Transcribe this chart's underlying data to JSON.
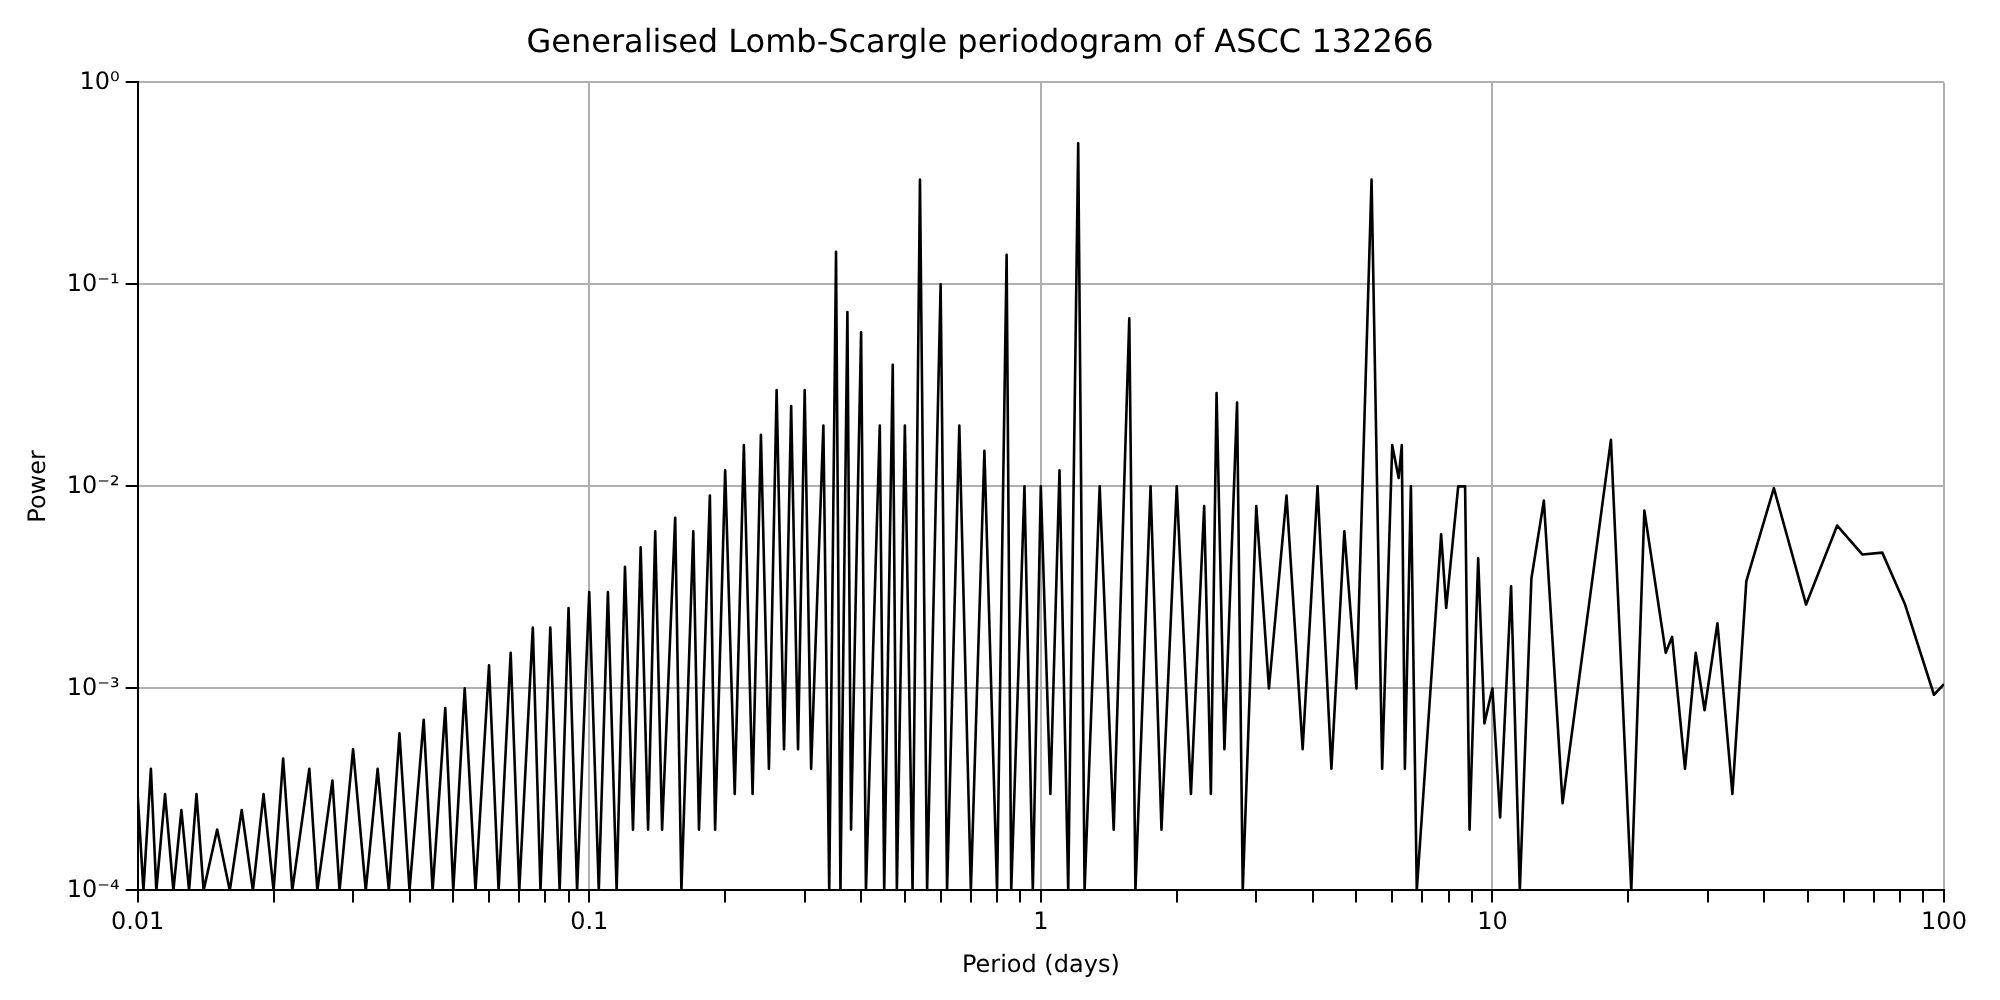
{
  "chart_data": {
    "type": "line",
    "title": "Generalised Lomb-Scargle periodogram of ASCC 132266",
    "xlabel": "Period (days)",
    "ylabel": "Power",
    "log": "xy",
    "grid": true,
    "legend": false,
    "marker": "none",
    "line_style": "solid",
    "xlim": [
      0.01,
      100
    ],
    "ylim": [
      0.0001,
      1
    ],
    "xticks": [
      0.01,
      {
        "value": 0.02,
        "label": null
      },
      {
        "value": 0.03,
        "label": null
      },
      {
        "value": 0.04,
        "label": null
      },
      {
        "value": 0.05,
        "label": null
      },
      {
        "value": 0.06,
        "label": null
      },
      {
        "value": 0.07,
        "label": null
      },
      {
        "value": 0.08,
        "label": null
      },
      {
        "value": 0.09,
        "label": null
      },
      0.1,
      {
        "value": 0.2,
        "label": null
      },
      {
        "value": 0.3,
        "label": null
      },
      {
        "value": 0.4,
        "label": null
      },
      {
        "value": 0.5,
        "label": null
      },
      {
        "value": 0.6,
        "label": null
      },
      {
        "value": 0.7,
        "label": null
      },
      {
        "value": 0.8,
        "label": null
      },
      {
        "value": 0.9,
        "label": null
      },
      1,
      {
        "value": 2,
        "label": null
      },
      {
        "value": 3,
        "label": null
      },
      {
        "value": 4,
        "label": null
      },
      {
        "value": 5,
        "label": null
      },
      {
        "value": 6,
        "label": null
      },
      {
        "value": 7,
        "label": null
      },
      {
        "value": 8,
        "label": null
      },
      {
        "value": 9,
        "label": null
      },
      10,
      {
        "value": 20,
        "label": null
      },
      {
        "value": 30,
        "label": null
      },
      {
        "value": 40,
        "label": null
      },
      {
        "value": 50,
        "label": null
      },
      {
        "value": 60,
        "label": null
      },
      {
        "value": 70,
        "label": null
      },
      {
        "value": 80,
        "label": null
      },
      {
        "value": 90,
        "label": null
      },
      100
    ],
    "yticks": [
      {
        "value": 0.0001,
        "label": "10⁻⁴"
      },
      {
        "value": 0.001,
        "label": "10⁻³"
      },
      {
        "value": 0.01,
        "label": "10⁻²"
      },
      {
        "value": 0.1,
        "label": "10⁻¹"
      },
      {
        "value": 1,
        "label": "10⁰"
      }
    ],
    "series": [
      {
        "color": "#000000",
        "x": [
          0.01,
          0.0103,
          0.0107,
          0.011,
          0.0115,
          0.012,
          0.0125,
          0.013,
          0.0135,
          0.014,
          0.015,
          0.016,
          0.017,
          0.018,
          0.019,
          0.02,
          0.021,
          0.022,
          0.024,
          0.025,
          0.027,
          0.028,
          0.03,
          0.032,
          0.034,
          0.036,
          0.038,
          0.04,
          0.043,
          0.045,
          0.048,
          0.05,
          0.053,
          0.056,
          0.06,
          0.063,
          0.067,
          0.07,
          0.075,
          0.078,
          0.082,
          0.086,
          0.09,
          0.094,
          0.1,
          0.105,
          0.11,
          0.115,
          0.12,
          0.125,
          0.13,
          0.135,
          0.14,
          0.145,
          0.155,
          0.16,
          0.17,
          0.175,
          0.185,
          0.19,
          0.2,
          0.21,
          0.22,
          0.23,
          0.24,
          0.25,
          0.26,
          0.27,
          0.28,
          0.29,
          0.3,
          0.31,
          0.33,
          0.34,
          0.352,
          0.36,
          0.373,
          0.38,
          0.4,
          0.41,
          0.44,
          0.45,
          0.47,
          0.48,
          0.5,
          0.52,
          0.54,
          0.56,
          0.6,
          0.62,
          0.66,
          0.7,
          0.75,
          0.8,
          0.84,
          0.86,
          0.92,
          0.96,
          1.0,
          1.05,
          1.1,
          1.15,
          1.21,
          1.25,
          1.35,
          1.45,
          1.57,
          1.62,
          1.75,
          1.85,
          2.0,
          2.15,
          2.3,
          2.38,
          2.45,
          2.55,
          2.72,
          2.8,
          3.0,
          3.2,
          3.5,
          3.8,
          4.1,
          4.4,
          4.7,
          5.0,
          5.4,
          5.7,
          6.0,
          6.2,
          6.3,
          6.4,
          6.6,
          6.8,
          7.7,
          7.9,
          8.4,
          8.7,
          8.9,
          9.3,
          9.6,
          10,
          10.4,
          11,
          11.5,
          12.2,
          13,
          14.3,
          18.3,
          20.3,
          21.7,
          24.2,
          25,
          26.7,
          28.2,
          29.5,
          31.5,
          34,
          36.5,
          42,
          49.5,
          58,
          66,
          73,
          82,
          95,
          100
        ],
        "values": [
          0.0003,
          0.0001,
          0.0004,
          0.0001,
          0.0003,
          0.0001,
          0.00025,
          0.0001,
          0.0003,
          0.0001,
          0.0002,
          0.0001,
          0.00025,
          0.0001,
          0.0003,
          0.0001,
          0.00045,
          0.0001,
          0.0004,
          0.0001,
          0.00035,
          0.0001,
          0.0005,
          0.0001,
          0.0004,
          0.0001,
          0.0006,
          0.0001,
          0.0007,
          0.0001,
          0.0008,
          0.0001,
          0.001,
          0.0001,
          0.0013,
          0.0001,
          0.0015,
          0.0001,
          0.002,
          0.0001,
          0.002,
          0.0001,
          0.0025,
          0.0001,
          0.003,
          0.0001,
          0.003,
          0.0001,
          0.004,
          0.0002,
          0.005,
          0.0002,
          0.006,
          0.0002,
          0.007,
          0.0001,
          0.006,
          0.0002,
          0.009,
          0.0002,
          0.012,
          0.0003,
          0.016,
          0.0003,
          0.018,
          0.0004,
          0.03,
          0.0005,
          0.025,
          0.0005,
          0.03,
          0.0004,
          0.02,
          0.0001,
          0.145,
          0.0001,
          0.073,
          0.0002,
          0.058,
          0.0001,
          0.02,
          0.0001,
          0.04,
          0.0001,
          0.02,
          0.0001,
          0.33,
          0.0001,
          0.1,
          0.0001,
          0.02,
          0.0001,
          0.015,
          0.0001,
          0.14,
          0.0001,
          0.01,
          0.0001,
          0.01,
          0.0003,
          0.012,
          0.0001,
          0.5,
          0.0001,
          0.01,
          0.0002,
          0.068,
          0.0001,
          0.01,
          0.0002,
          0.01,
          0.0003,
          0.008,
          0.0003,
          0.029,
          0.0005,
          0.026,
          0.0001,
          0.008,
          0.001,
          0.009,
          0.0005,
          0.01,
          0.0004,
          0.006,
          0.001,
          0.33,
          0.0004,
          0.016,
          0.011,
          0.016,
          0.0004,
          0.01,
          0.0001,
          0.0058,
          0.0025,
          0.01,
          0.01,
          0.0002,
          0.0044,
          0.00067,
          0.001,
          0.00023,
          0.0032,
          0.0001,
          0.0035,
          0.0085,
          0.00027,
          0.017,
          0.0001,
          0.0076,
          0.0015,
          0.0018,
          0.0004,
          0.0015,
          0.00078,
          0.0021,
          0.0003,
          0.0034,
          0.0098,
          0.0026,
          0.0064,
          0.0046,
          0.0047,
          0.0026,
          0.00093,
          0.00105
        ]
      }
    ]
  }
}
